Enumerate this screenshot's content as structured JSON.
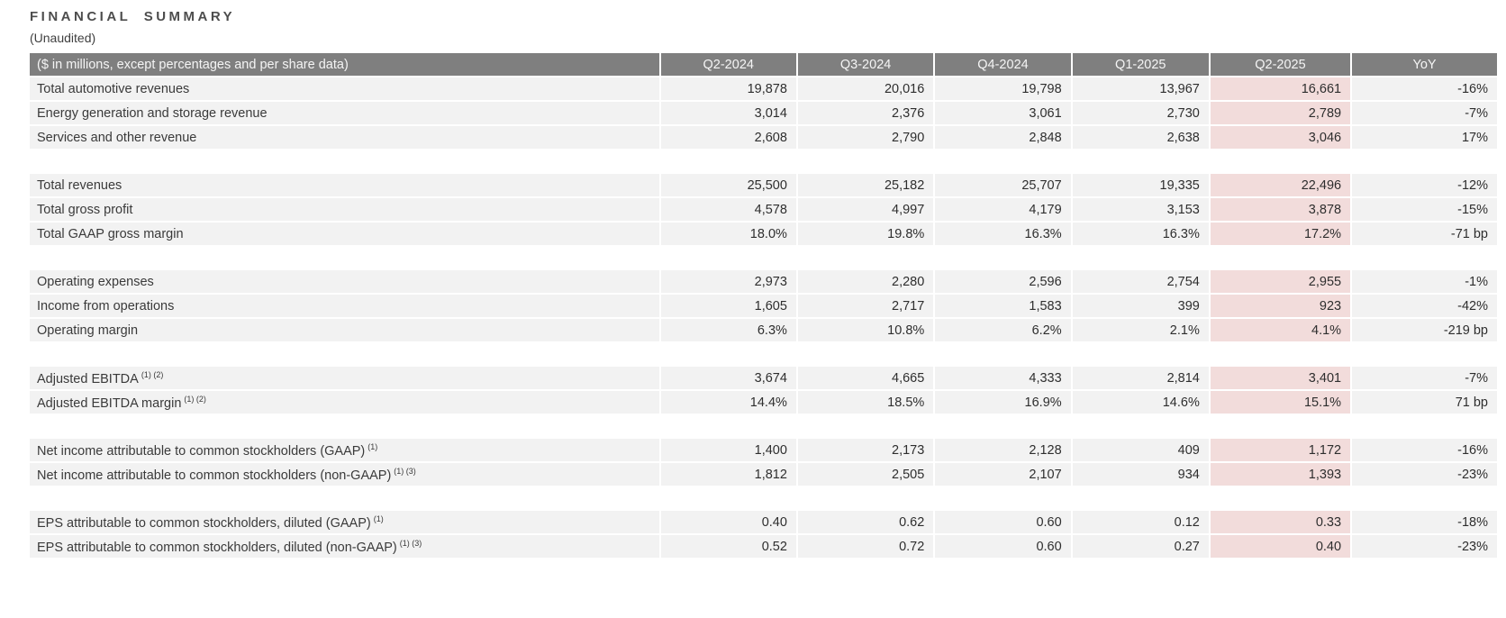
{
  "page": {
    "title": "FINANCIAL SUMMARY",
    "subtitle": "(Unaudited)"
  },
  "colors": {
    "header_bg": "#7f7f7f",
    "header_text": "#f5f5f5",
    "row_bg": "#f2f2f2",
    "highlight_bg": "#f2dcdb",
    "text": "#333333"
  },
  "table": {
    "header": {
      "caption": "($ in millions, except percentages and per share data)",
      "columns": [
        "Q2-2024",
        "Q3-2024",
        "Q4-2024",
        "Q1-2025",
        "Q2-2025",
        "YoY"
      ],
      "highlight_column": "Q2-2025"
    },
    "groups": [
      {
        "rows": [
          {
            "label": "Total automotive revenues",
            "sup": "",
            "values": [
              "19,878",
              "20,016",
              "19,798",
              "13,967",
              "16,661",
              "-16%"
            ]
          },
          {
            "label": "Energy generation and storage revenue",
            "sup": "",
            "values": [
              "3,014",
              "2,376",
              "3,061",
              "2,730",
              "2,789",
              "-7%"
            ]
          },
          {
            "label": "Services and other revenue",
            "sup": "",
            "values": [
              "2,608",
              "2,790",
              "2,848",
              "2,638",
              "3,046",
              "17%"
            ]
          }
        ]
      },
      {
        "rows": [
          {
            "label": "Total revenues",
            "sup": "",
            "values": [
              "25,500",
              "25,182",
              "25,707",
              "19,335",
              "22,496",
              "-12%"
            ]
          },
          {
            "label": "Total gross profit",
            "sup": "",
            "values": [
              "4,578",
              "4,997",
              "4,179",
              "3,153",
              "3,878",
              "-15%"
            ]
          },
          {
            "label": "Total GAAP gross margin",
            "sup": "",
            "values": [
              "18.0%",
              "19.8%",
              "16.3%",
              "16.3%",
              "17.2%",
              "-71 bp"
            ]
          }
        ]
      },
      {
        "rows": [
          {
            "label": "Operating expenses",
            "sup": "",
            "values": [
              "2,973",
              "2,280",
              "2,596",
              "2,754",
              "2,955",
              "-1%"
            ]
          },
          {
            "label": "Income from operations",
            "sup": "",
            "values": [
              "1,605",
              "2,717",
              "1,583",
              "399",
              "923",
              "-42%"
            ]
          },
          {
            "label": "Operating margin",
            "sup": "",
            "values": [
              "6.3%",
              "10.8%",
              "6.2%",
              "2.1%",
              "4.1%",
              "-219 bp"
            ]
          }
        ]
      },
      {
        "rows": [
          {
            "label": "Adjusted EBITDA",
            "sup": "(1) (2)",
            "values": [
              "3,674",
              "4,665",
              "4,333",
              "2,814",
              "3,401",
              "-7%"
            ]
          },
          {
            "label": "Adjusted EBITDA margin",
            "sup": "(1) (2)",
            "values": [
              "14.4%",
              "18.5%",
              "16.9%",
              "14.6%",
              "15.1%",
              "71 bp"
            ]
          }
        ]
      },
      {
        "rows": [
          {
            "label": "Net income attributable to common stockholders (GAAP)",
            "sup": "(1)",
            "values": [
              "1,400",
              "2,173",
              "2,128",
              "409",
              "1,172",
              "-16%"
            ]
          },
          {
            "label": "Net income attributable to common stockholders (non-GAAP)",
            "sup": "(1) (3)",
            "values": [
              "1,812",
              "2,505",
              "2,107",
              "934",
              "1,393",
              "-23%"
            ]
          }
        ]
      },
      {
        "rows": [
          {
            "label": "EPS attributable to common stockholders, diluted (GAAP)",
            "sup": "(1)",
            "values": [
              "0.40",
              "0.62",
              "0.60",
              "0.12",
              "0.33",
              "-18%"
            ]
          },
          {
            "label": "EPS attributable to common stockholders, diluted (non-GAAP)",
            "sup": "(1) (3)",
            "values": [
              "0.52",
              "0.72",
              "0.60",
              "0.27",
              "0.40",
              "-23%"
            ]
          }
        ]
      }
    ]
  }
}
